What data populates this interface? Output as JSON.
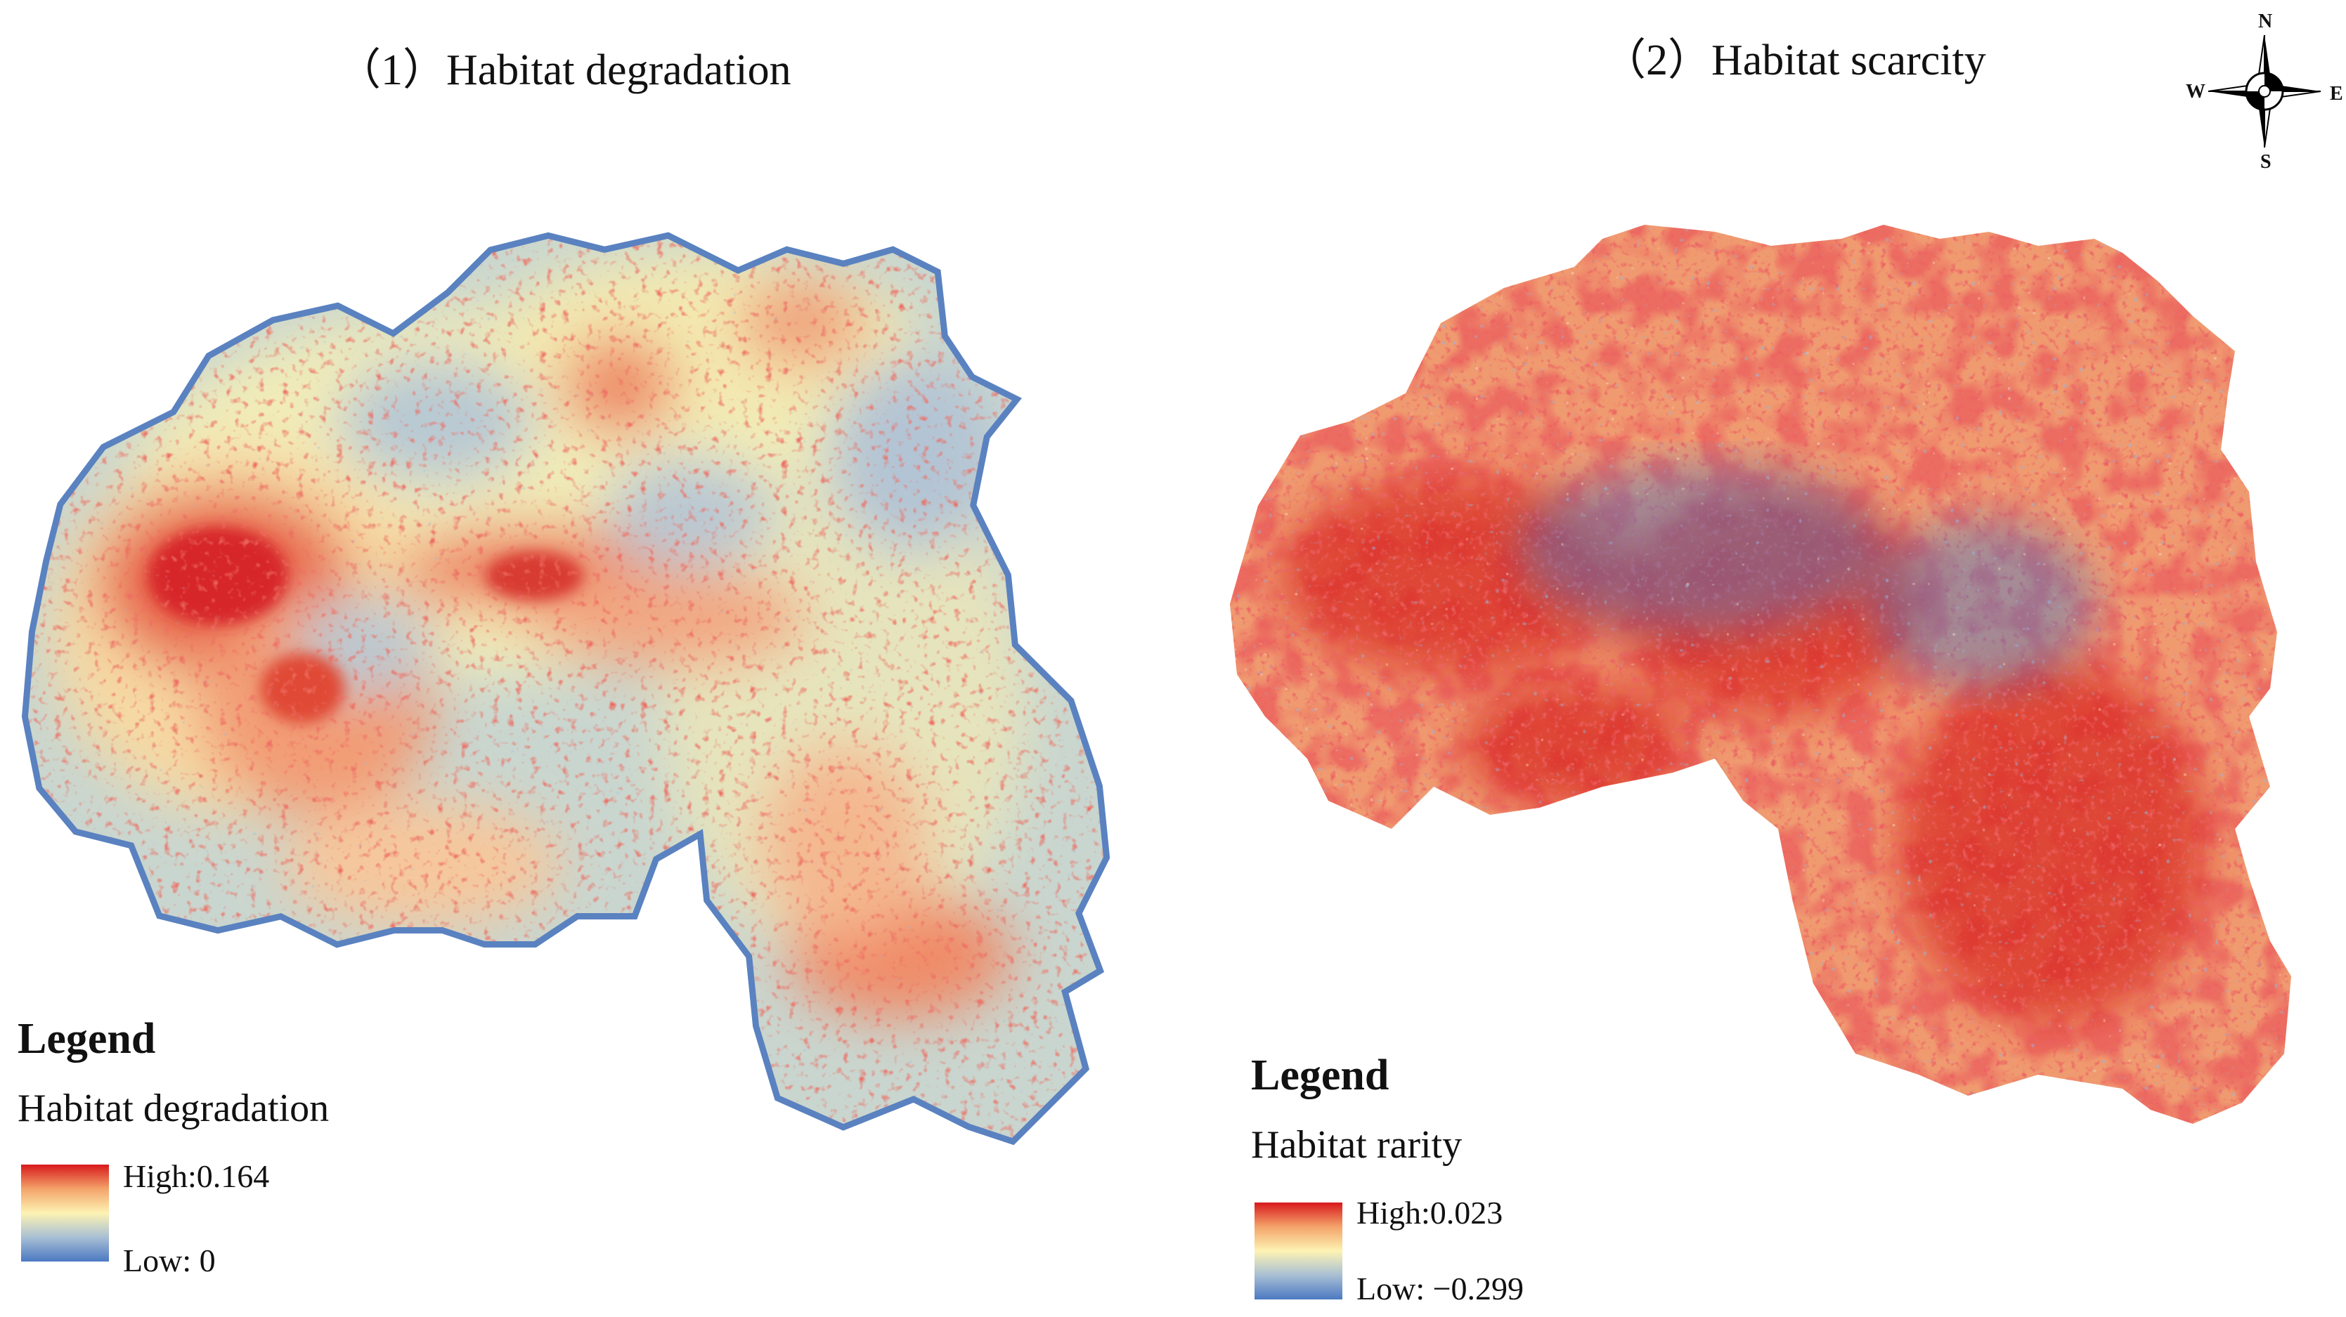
{
  "panels": [
    {
      "title": "（1）Habitat degradation",
      "legend": {
        "heading": "Legend",
        "name": "Habitat degradation",
        "high_label": "High:0.164",
        "low_label": "Low: 0",
        "high_value": 0.164,
        "low_value": 0
      },
      "ramp_colors": [
        "#d7191c",
        "#f4a36a",
        "#fdf3b3",
        "#a8bfd4",
        "#4b79c2"
      ]
    },
    {
      "title": "（2）Habitat scarcity",
      "legend": {
        "heading": "Legend",
        "name": "Habitat rarity",
        "high_label": "High:0.023",
        "low_label": "Low: −0.299",
        "high_value": 0.023,
        "low_value": -0.299
      },
      "ramp_colors": [
        "#d7191c",
        "#f4a36a",
        "#fdf3b3",
        "#a8bfd4",
        "#4b79c2"
      ]
    }
  ],
  "compass": {
    "north": "N",
    "south": "S",
    "east": "E",
    "west": "W"
  }
}
